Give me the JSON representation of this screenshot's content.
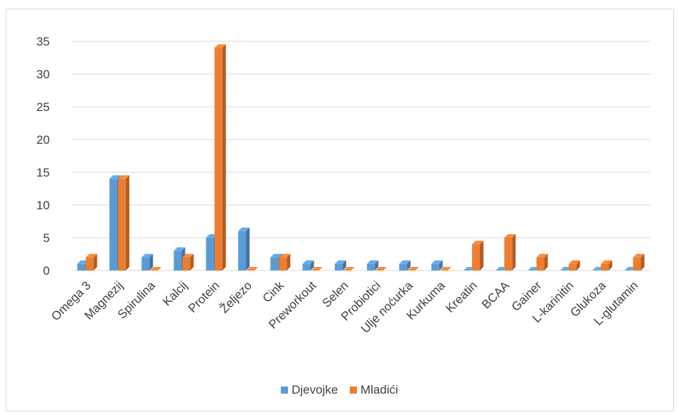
{
  "chart_data": {
    "type": "bar",
    "categories": [
      "Omega 3",
      "Magnezij",
      "Spirulina",
      "Kalcij",
      "Protein",
      "Željezo",
      "Cink",
      "Preworkout",
      "Selen",
      "Probiotici",
      "Ulje noćurka",
      "Kurkuma",
      "Kreatin",
      "BCAA",
      "Gainer",
      "L-karinitin",
      "Glukoza",
      "L-glutamin"
    ],
    "series": [
      {
        "name": "Djevojke",
        "color": "#5b9bd5",
        "values": [
          1,
          14,
          2,
          3,
          5,
          6,
          2,
          1,
          1,
          1,
          1,
          1,
          0,
          0,
          0,
          0,
          0,
          0
        ]
      },
      {
        "name": "Mladići",
        "color": "#ed7d31",
        "values": [
          2,
          14,
          0,
          2,
          34,
          0,
          2,
          0,
          0,
          0,
          0,
          0,
          4,
          5,
          2,
          1,
          1,
          2
        ]
      }
    ],
    "y_ticks": [
      "0",
      "5",
      "10",
      "15",
      "20",
      "25",
      "30",
      "35"
    ],
    "ylim": [
      0,
      35
    ],
    "grid": true,
    "legend_position": "bottom"
  }
}
